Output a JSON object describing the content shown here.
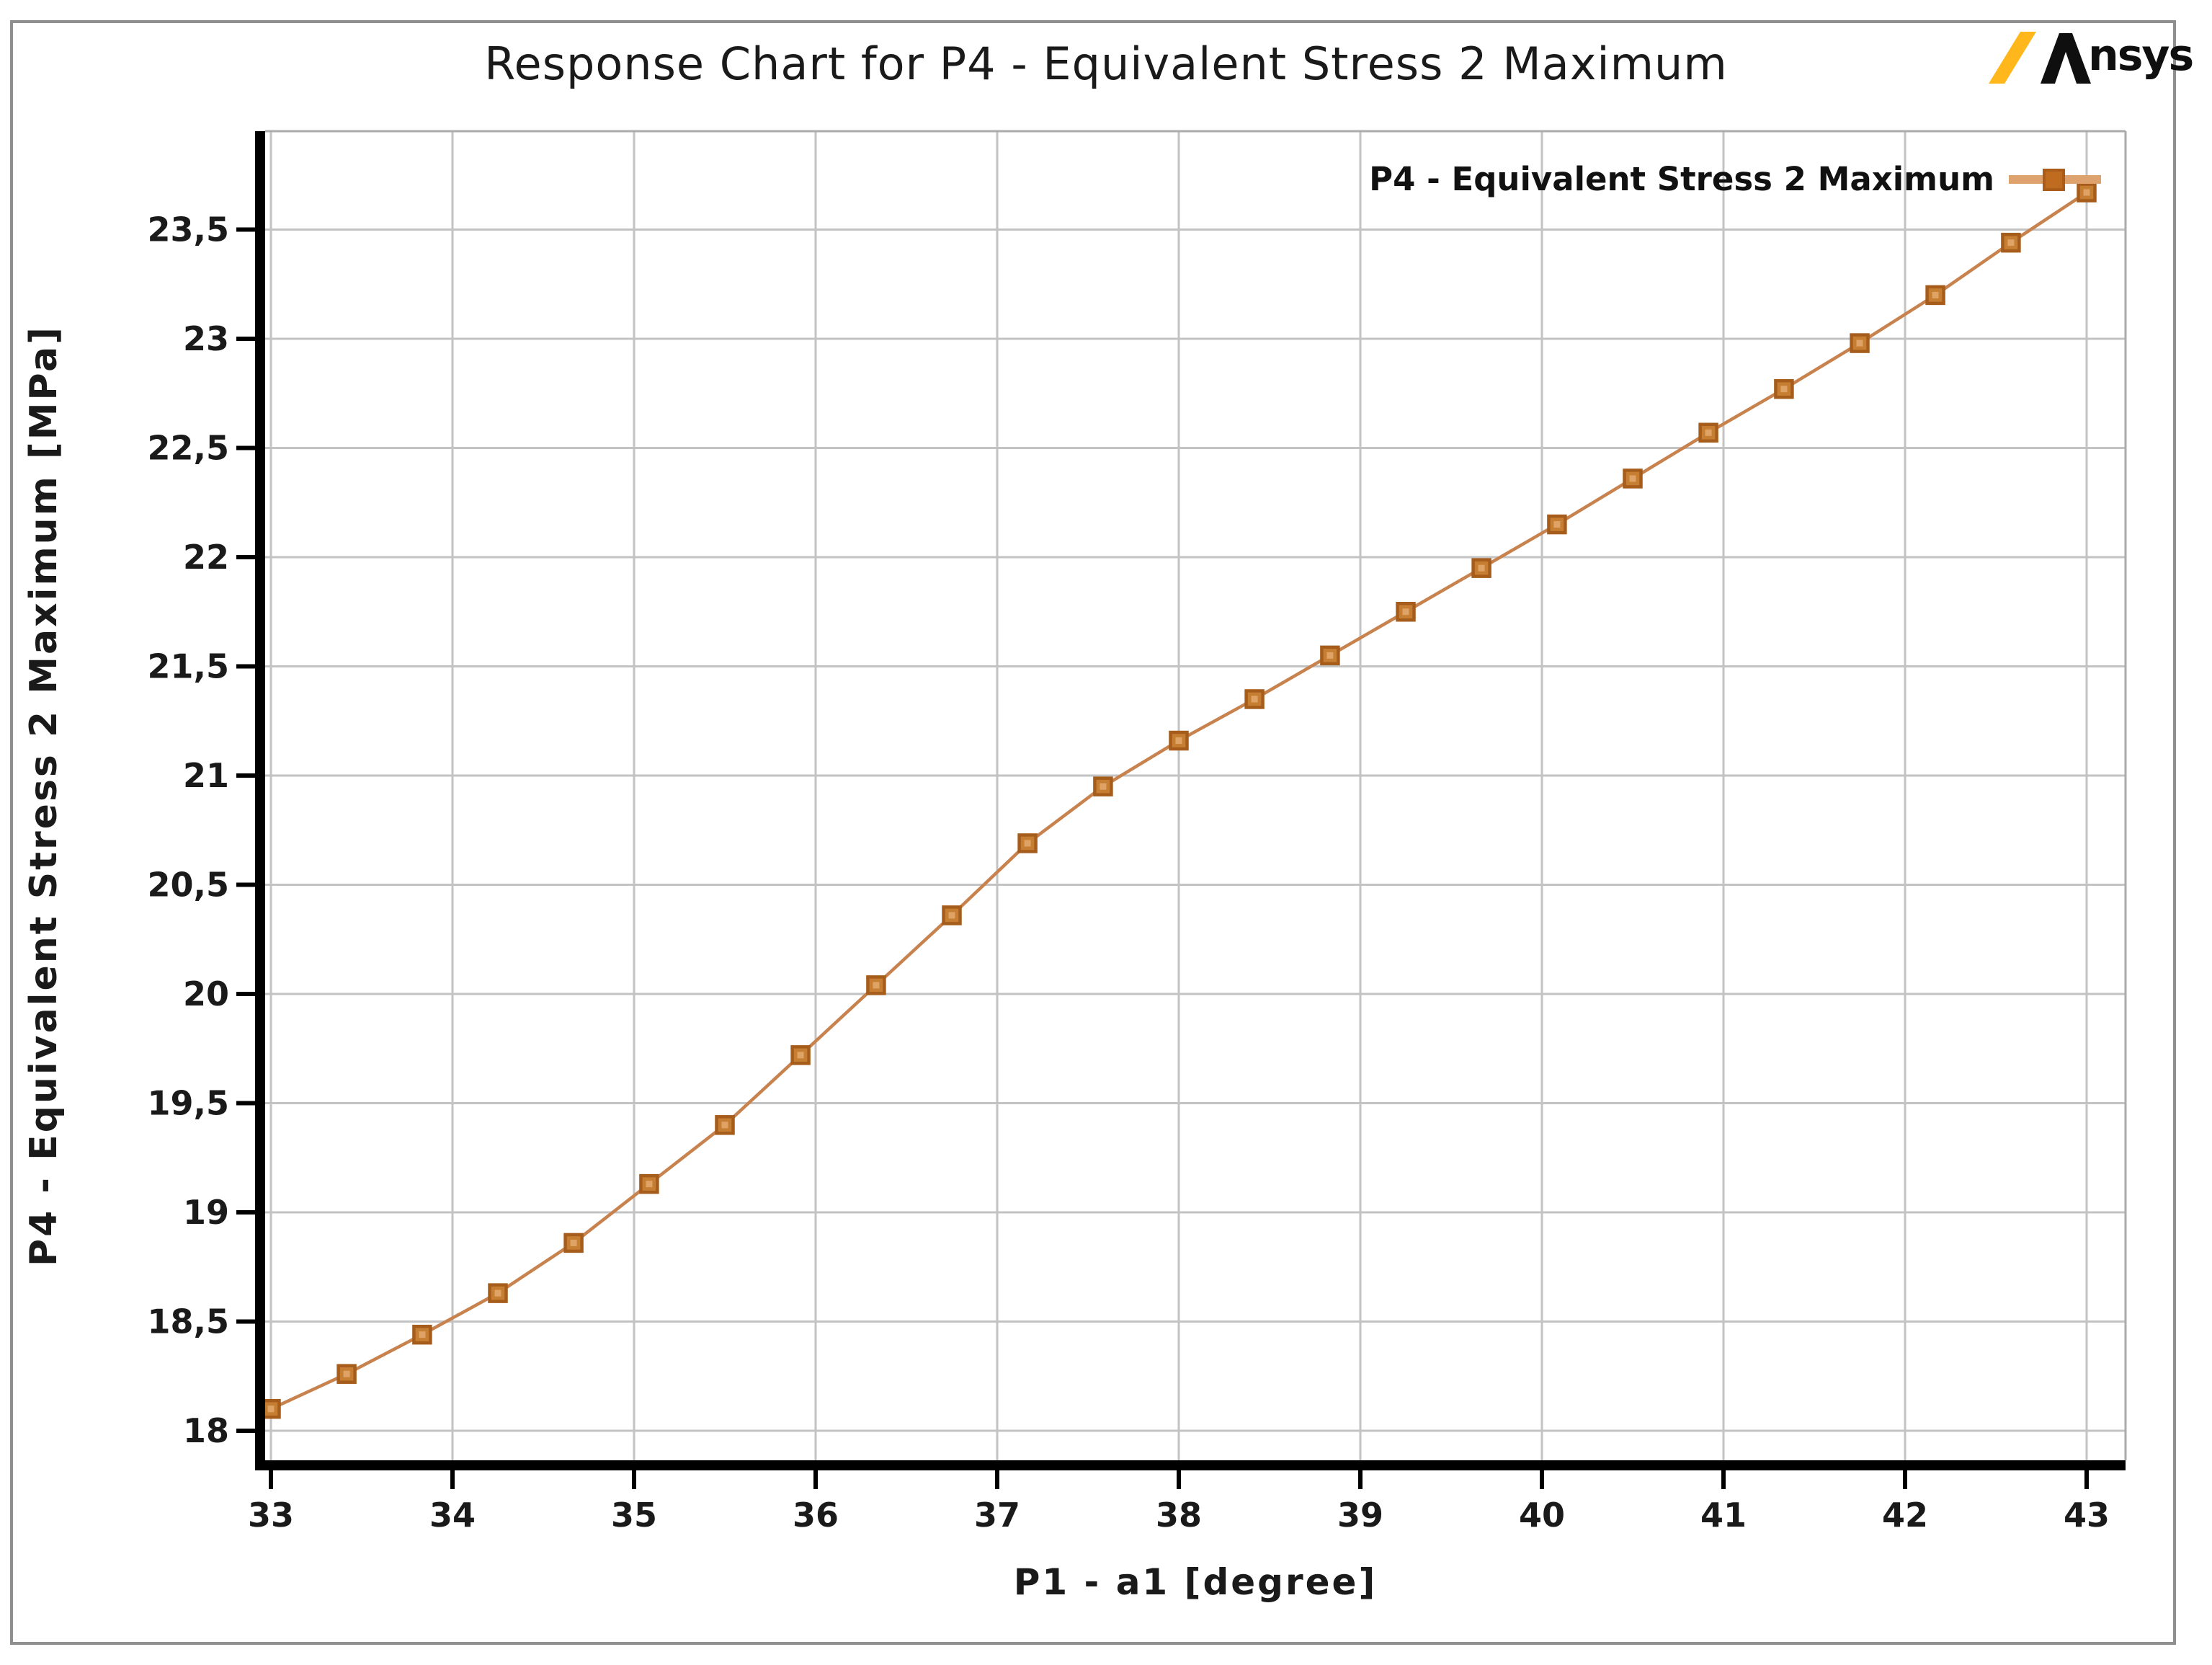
{
  "window": {
    "border_color": "#8F8F8F",
    "background": "#ffffff"
  },
  "title": "Response Chart for P4 - Equivalent Stress 2 Maximum",
  "logo": {
    "name": "Ansys",
    "text": "nsys",
    "slash_color": "#FFB71B",
    "text_color": "#0f0f0f"
  },
  "legend": {
    "label": "P4 - Equivalent Stress 2 Maximum"
  },
  "chart_data": {
    "type": "line",
    "title": "Response Chart for P4 - Equivalent Stress 2 Maximum",
    "xlabel": "P1 - a1  [degree]",
    "ylabel": "P4 - Equivalent Stress 2 Maximum  [MPa]",
    "decimal_separator": ",",
    "xlim": [
      32.97,
      43.22
    ],
    "ylim": [
      17.86,
      23.95
    ],
    "grid": true,
    "legend_position": "top-right-inside",
    "x_ticks": [
      {
        "v": 33,
        "label": "33"
      },
      {
        "v": 34,
        "label": "34"
      },
      {
        "v": 35,
        "label": "35"
      },
      {
        "v": 36,
        "label": "36"
      },
      {
        "v": 37,
        "label": "37"
      },
      {
        "v": 38,
        "label": "38"
      },
      {
        "v": 39,
        "label": "39"
      },
      {
        "v": 40,
        "label": "40"
      },
      {
        "v": 41,
        "label": "41"
      },
      {
        "v": 42,
        "label": "42"
      },
      {
        "v": 43,
        "label": "43"
      }
    ],
    "y_ticks": [
      {
        "v": 18,
        "label": "18"
      },
      {
        "v": 18.5,
        "label": "18,5"
      },
      {
        "v": 19,
        "label": "19"
      },
      {
        "v": 19.5,
        "label": "19,5"
      },
      {
        "v": 20,
        "label": "20"
      },
      {
        "v": 20.5,
        "label": "20,5"
      },
      {
        "v": 21,
        "label": "21"
      },
      {
        "v": 21.5,
        "label": "21,5"
      },
      {
        "v": 22,
        "label": "22"
      },
      {
        "v": 22.5,
        "label": "22,5"
      },
      {
        "v": 23,
        "label": "23"
      },
      {
        "v": 23.5,
        "label": "23,5"
      }
    ],
    "series": [
      {
        "name": "P4 - Equivalent Stress 2 Maximum",
        "marker": "square",
        "x": [
          33,
          33.417,
          33.833,
          34.25,
          34.667,
          35.083,
          35.5,
          35.917,
          36.333,
          36.75,
          37.167,
          37.583,
          38,
          38.417,
          38.833,
          39.25,
          39.667,
          40.083,
          40.5,
          40.917,
          41.333,
          41.75,
          42.167,
          42.583,
          43
        ],
        "y": [
          18.1,
          18.26,
          18.44,
          18.63,
          18.86,
          19.13,
          19.4,
          19.72,
          20.04,
          20.36,
          20.69,
          20.95,
          21.16,
          21.35,
          21.55,
          21.75,
          21.95,
          22.15,
          22.36,
          22.57,
          22.77,
          22.98,
          23.2,
          23.44,
          23.67
        ]
      }
    ],
    "colors": {
      "line": "#C8824E",
      "marker_fill": "#C67E33",
      "marker_stroke": "#A65D1C",
      "marker_inner": "#E6B077",
      "legend_line": "#DEA26E",
      "legend_marker_fill": "#C06C20",
      "legend_marker_stroke": "#AA5C18",
      "grid": "#C3C3C3",
      "plot_border": "#ABABAB",
      "axis": "#000000",
      "text": "#1a1a1a"
    }
  }
}
